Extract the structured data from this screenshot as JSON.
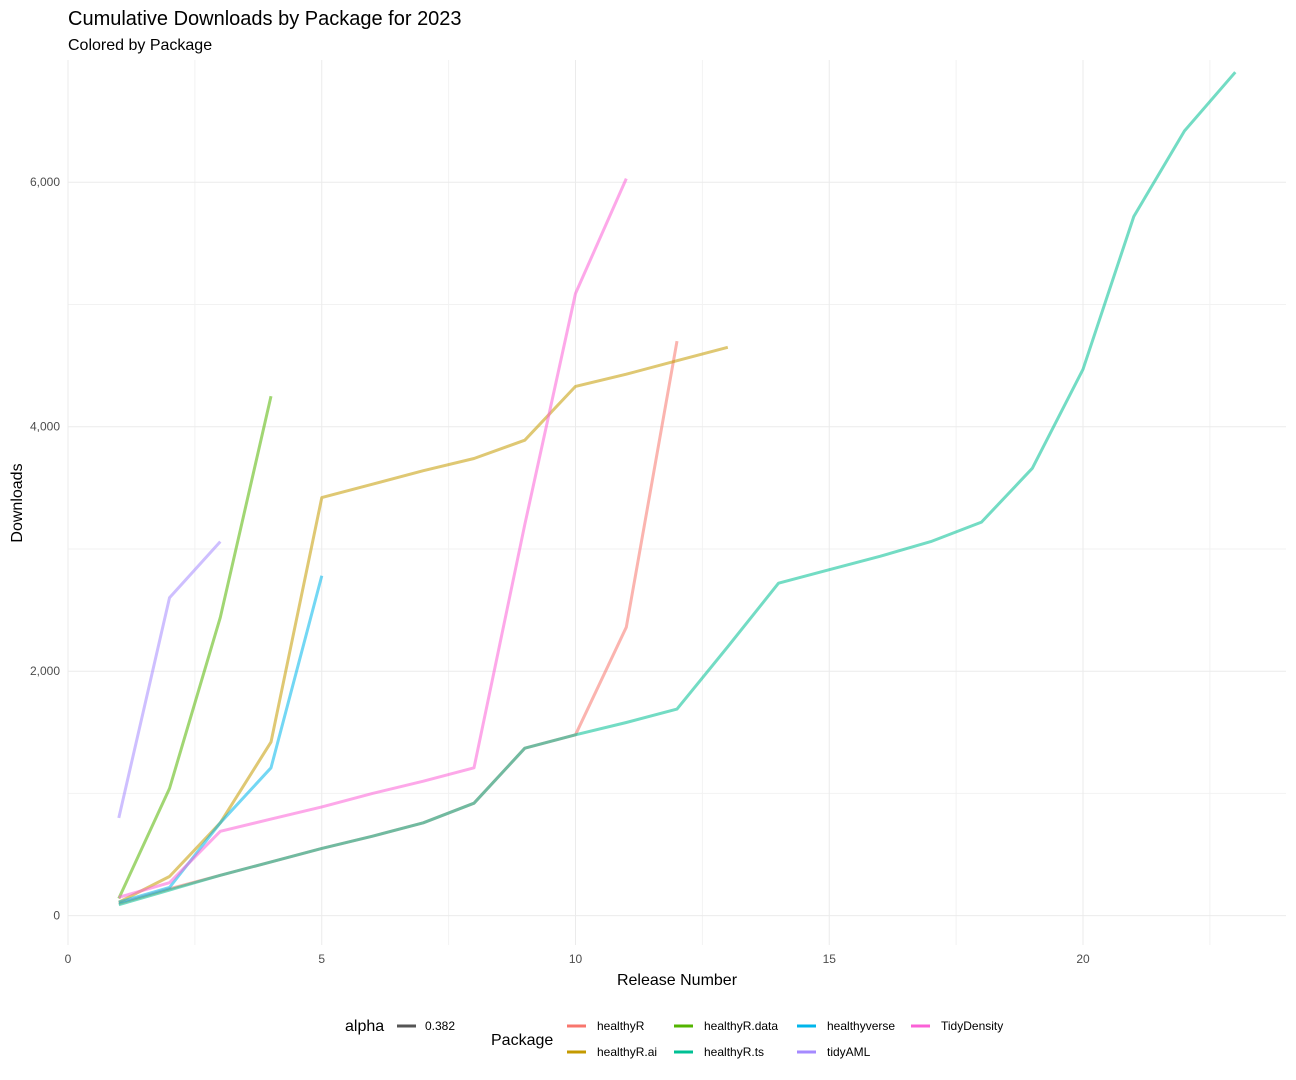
{
  "chart_data": {
    "type": "line",
    "title": "Cumulative Downloads by Package for 2023",
    "subtitle": "Colored by Package",
    "xlabel": "Release Number",
    "ylabel": "Downloads",
    "xlim": [
      0,
      24
    ],
    "ylim": [
      -240,
      7000
    ],
    "x_ticks": [
      0,
      5,
      10,
      15,
      20
    ],
    "x_tick_labels": [
      "0",
      "5",
      "10",
      "15",
      "20"
    ],
    "y_ticks": [
      0,
      2000,
      4000,
      6000
    ],
    "y_tick_labels": [
      "0",
      "2,000",
      "4,000",
      "6,000"
    ],
    "grid": true,
    "legend_position": "bottom",
    "alpha_legend": {
      "title": "alpha",
      "label": "0.382",
      "color": "#555555"
    },
    "legend_title": "Package",
    "series": [
      {
        "name": "healthyR",
        "color": "#F8766D",
        "x": [
          1,
          2,
          3,
          4,
          5,
          6,
          7,
          8,
          9,
          10,
          11,
          12
        ],
        "y": [
          100,
          220,
          330,
          440,
          550,
          650,
          760,
          920,
          1370,
          1480,
          2360,
          4700
        ]
      },
      {
        "name": "healthyR.ai",
        "color": "#C49A00",
        "x": [
          1,
          2,
          3,
          4,
          5,
          6,
          7,
          8,
          9,
          10,
          11,
          12,
          13
        ],
        "y": [
          110,
          320,
          760,
          1420,
          3420,
          3530,
          3640,
          3740,
          3890,
          4330,
          4430,
          4540,
          4650
        ]
      },
      {
        "name": "healthyR.data",
        "color": "#53B400",
        "x": [
          1,
          2,
          3,
          4
        ],
        "y": [
          140,
          1040,
          2440,
          4250
        ]
      },
      {
        "name": "healthyR.ts",
        "color": "#00C094",
        "x": [
          1,
          2,
          3,
          4,
          5,
          6,
          7,
          8,
          9,
          10,
          11,
          12,
          13,
          14,
          15,
          16,
          17,
          18,
          19,
          20,
          21,
          22,
          23
        ],
        "y": [
          90,
          210,
          330,
          440,
          550,
          650,
          760,
          920,
          1370,
          1480,
          1580,
          1690,
          2200,
          2720,
          2830,
          2940,
          3060,
          3220,
          3660,
          4470,
          5720,
          6420,
          6900
        ]
      },
      {
        "name": "healthyverse",
        "color": "#00B6EB",
        "x": [
          1,
          2,
          3,
          4,
          5
        ],
        "y": [
          110,
          230,
          760,
          1210,
          2780
        ]
      },
      {
        "name": "tidyAML",
        "color": "#A58AFF",
        "x": [
          1,
          2,
          3
        ],
        "y": [
          800,
          2600,
          3060
        ]
      },
      {
        "name": "TidyDensity",
        "color": "#FB61D7",
        "x": [
          1,
          2,
          3,
          4,
          5,
          6,
          7,
          8,
          9,
          10,
          11
        ],
        "y": [
          150,
          270,
          690,
          790,
          890,
          1000,
          1100,
          1210,
          3200,
          5090,
          6030
        ]
      }
    ]
  }
}
